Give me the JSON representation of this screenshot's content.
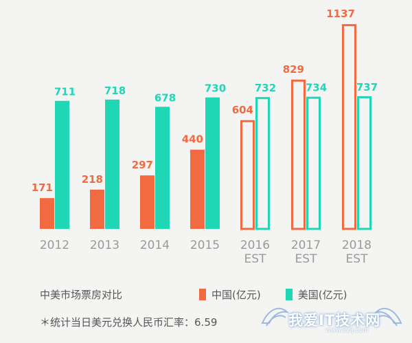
{
  "chart_data": {
    "type": "bar",
    "categories": [
      "2012",
      "2013",
      "2014",
      "2015",
      "2016\nEST",
      "2017\nEST",
      "2018\nEST"
    ],
    "series": [
      {
        "name": "中国(亿元)",
        "color": "#f26a42",
        "values": [
          171,
          218,
          297,
          440,
          604,
          829,
          1137
        ],
        "estimated_from_index": 4
      },
      {
        "name": "美国(亿元)",
        "color": "#1fd6b5",
        "values": [
          711,
          718,
          678,
          730,
          732,
          734,
          737
        ],
        "estimated_from_index": 4
      }
    ],
    "value_labels": {
      "china": [
        "171",
        "218",
        "297",
        "440",
        "604",
        "829",
        "1137"
      ],
      "usa": [
        "711",
        "718",
        "678",
        "730",
        "732",
        "734",
        "737"
      ]
    },
    "title": "中美市场票房对比",
    "note": "＊统计当日美元兑换人民币汇率：6.59",
    "grid": false,
    "legend_position": "bottom"
  },
  "watermark": {
    "text": "我爱IT技术网",
    "url": "www.52ij.com"
  }
}
